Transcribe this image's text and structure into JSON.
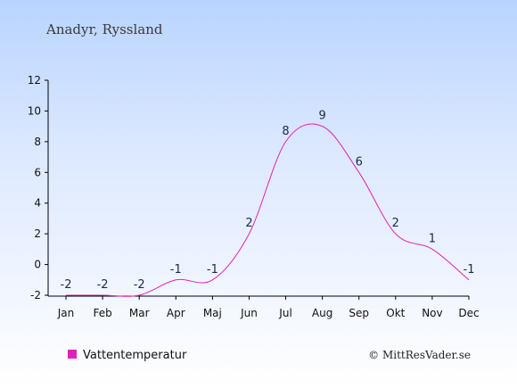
{
  "chart_data": {
    "type": "line",
    "title": "Anadyr, Ryssland",
    "categories": [
      "Jan",
      "Feb",
      "Mar",
      "Apr",
      "Maj",
      "Jun",
      "Jul",
      "Aug",
      "Sep",
      "Okt",
      "Nov",
      "Dec"
    ],
    "series": [
      {
        "name": "Vattentemperatur",
        "values": [
          -2,
          -2,
          -2,
          -1,
          -1,
          2,
          8,
          9,
          6,
          2,
          1,
          -1
        ],
        "color": "#e020c0"
      }
    ],
    "data_labels": [
      "-2",
      "-2",
      "-2",
      "-1",
      "-1",
      "2",
      "8",
      "9",
      "6",
      "2",
      "1",
      "-1"
    ],
    "y_ticks": [
      -2,
      0,
      2,
      4,
      6,
      8,
      10,
      12
    ],
    "ylim": [
      -2,
      12
    ],
    "grid": false,
    "legend": "bottom-left"
  },
  "credit": "© MittResVader.se"
}
